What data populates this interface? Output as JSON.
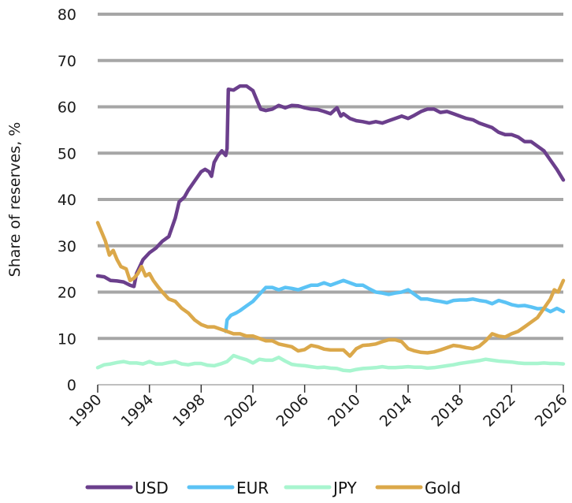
{
  "chart_data": {
    "type": "line",
    "title": "",
    "xlabel": "",
    "ylabel": "Share of reserves, %",
    "xlim": [
      1990,
      2026
    ],
    "ylim": [
      0,
      80
    ],
    "yticks": [
      0,
      10,
      20,
      30,
      40,
      50,
      60,
      70,
      80
    ],
    "ytick_labels": [
      "0",
      "10",
      "20",
      "30",
      "40",
      "50",
      "60",
      "70",
      "80"
    ],
    "xticks": [
      1990,
      1994,
      1998,
      2002,
      2006,
      2010,
      2014,
      2018,
      2022,
      2026
    ],
    "xtick_labels": [
      "1990",
      "1994",
      "1998",
      "2002",
      "2006",
      "2010",
      "2014",
      "2018",
      "2022",
      "2026"
    ],
    "grid": "horizontal",
    "legend": "bottom",
    "series": [
      {
        "name": "USD",
        "color": "#6b3f8c",
        "x": [
          1990,
          1990.5,
          1991,
          1991.5,
          1992,
          1992.5,
          1992.8,
          1993,
          1993.5,
          1994,
          1994.5,
          1995,
          1995.5,
          1996,
          1996.3,
          1996.7,
          1997,
          1997.5,
          1998,
          1998.3,
          1998.6,
          1998.8,
          1999,
          1999.3,
          1999.6,
          1999.9,
          2000,
          2000.1,
          2000.5,
          2001,
          2001.5,
          2002,
          2002.3,
          2002.6,
          2003,
          2003.5,
          2004,
          2004.5,
          2005,
          2005.5,
          2006,
          2006.5,
          2007,
          2007.5,
          2008,
          2008.5,
          2008.8,
          2009,
          2009.5,
          2010,
          2010.5,
          2011,
          2011.5,
          2012,
          2012.5,
          2013,
          2013.5,
          2014,
          2014.5,
          2015,
          2015.5,
          2016,
          2016.5,
          2017,
          2017.5,
          2018,
          2018.5,
          2019,
          2019.5,
          2020,
          2020.5,
          2021,
          2021.5,
          2022,
          2022.5,
          2023,
          2023.5,
          2024,
          2024.5,
          2025,
          2025.5,
          2026
        ],
        "values": [
          23.5,
          23.3,
          22.5,
          22.4,
          22.2,
          21.5,
          21.2,
          24,
          27,
          28.5,
          29.5,
          31,
          32,
          36,
          39.5,
          40.5,
          42,
          44,
          46,
          46.5,
          46,
          45,
          48,
          49.5,
          50.5,
          49.5,
          51,
          63.8,
          63.6,
          64.5,
          64.5,
          63.5,
          61.5,
          59.5,
          59.2,
          59.5,
          60.3,
          59.8,
          60.3,
          60.2,
          59.8,
          59.5,
          59.4,
          59,
          58.5,
          59.8,
          58,
          58.5,
          57.5,
          57,
          56.8,
          56.5,
          56.8,
          56.5,
          57,
          57.5,
          58,
          57.5,
          58.2,
          59,
          59.5,
          59.5,
          58.8,
          59,
          58.5,
          58,
          57.5,
          57.2,
          56.5,
          56,
          55.5,
          54.5,
          54,
          54,
          53.5,
          52.5,
          52.5,
          51.5,
          50.5,
          48.5,
          46.5,
          44.2
        ]
      },
      {
        "name": "EUR",
        "color": "#5bc3f5",
        "x": [
          1999.9,
          2000,
          2000.3,
          2000.7,
          2001,
          2001.5,
          2002,
          2002.5,
          2003,
          2003.5,
          2004,
          2004.5,
          2005,
          2005.5,
          2006,
          2006.5,
          2007,
          2007.5,
          2008,
          2008.5,
          2009,
          2009.5,
          2010,
          2010.5,
          2011,
          2011.5,
          2012,
          2012.5,
          2013,
          2013.5,
          2014,
          2014.5,
          2015,
          2015.5,
          2016,
          2016.5,
          2017,
          2017.5,
          2018,
          2018.5,
          2019,
          2019.5,
          2020,
          2020.5,
          2021,
          2021.5,
          2022,
          2022.5,
          2023,
          2023.5,
          2024,
          2024.5,
          2025,
          2025.5,
          2026
        ],
        "values": [
          11.5,
          14,
          15,
          15.5,
          16,
          17,
          18,
          19.5,
          21,
          21,
          20.5,
          21,
          20.8,
          20.5,
          21,
          21.5,
          21.5,
          22,
          21.5,
          22,
          22.5,
          22,
          21.5,
          21.5,
          20.7,
          20,
          19.8,
          19.5,
          19.8,
          20,
          20.5,
          19.5,
          18.5,
          18.5,
          18.2,
          18,
          17.7,
          18.2,
          18.3,
          18.3,
          18.5,
          18.2,
          18,
          17.5,
          18.2,
          17.8,
          17.3,
          17,
          17.1,
          16.8,
          16.4,
          16.5,
          15.8,
          16.5,
          15.8
        ]
      },
      {
        "name": "JPY",
        "color": "#a8f5cf",
        "x": [
          1990,
          1990.5,
          1991,
          1991.5,
          1992,
          1992.5,
          1993,
          1993.5,
          1994,
          1994.5,
          1995,
          1995.5,
          1996,
          1996.5,
          1997,
          1997.5,
          1998,
          1998.5,
          1999,
          1999.5,
          2000,
          2000.5,
          2001,
          2001.5,
          2002,
          2002.5,
          2003,
          2003.5,
          2004,
          2004.5,
          2005,
          2005.5,
          2006,
          2006.5,
          2007,
          2007.5,
          2008,
          2008.5,
          2009,
          2009.5,
          2010,
          2010.5,
          2011,
          2011.5,
          2012,
          2012.5,
          2013,
          2013.5,
          2014,
          2014.5,
          2015,
          2015.5,
          2016,
          2016.5,
          2017,
          2017.5,
          2018,
          2018.5,
          2019,
          2019.5,
          2020,
          2020.5,
          2021,
          2021.5,
          2022,
          2022.5,
          2023,
          2023.5,
          2024,
          2024.5,
          2025,
          2025.5,
          2026
        ],
        "values": [
          3.7,
          4.3,
          4.5,
          4.8,
          5,
          4.7,
          4.7,
          4.5,
          5,
          4.5,
          4.5,
          4.8,
          5,
          4.5,
          4.3,
          4.6,
          4.6,
          4.2,
          4.1,
          4.5,
          5,
          6.3,
          5.8,
          5.4,
          4.7,
          5.5,
          5.3,
          5.3,
          5.9,
          5.1,
          4.4,
          4.2,
          4.1,
          3.9,
          3.7,
          3.8,
          3.6,
          3.5,
          3.1,
          3.0,
          3.3,
          3.5,
          3.6,
          3.7,
          3.9,
          3.7,
          3.7,
          3.8,
          3.9,
          3.8,
          3.8,
          3.6,
          3.7,
          3.9,
          4.1,
          4.3,
          4.6,
          4.8,
          5,
          5.2,
          5.5,
          5.3,
          5.1,
          5,
          4.9,
          4.7,
          4.6,
          4.6,
          4.6,
          4.7,
          4.6,
          4.6,
          4.5
        ]
      },
      {
        "name": "Gold",
        "color": "#dba84a",
        "x": [
          1990,
          1990.3,
          1990.6,
          1990.9,
          1991.2,
          1991.5,
          1991.8,
          1992.2,
          1992.5,
          1992.8,
          1993.1,
          1993.4,
          1993.7,
          1994,
          1994.3,
          1994.7,
          1995,
          1995.5,
          1996,
          1996.5,
          1997,
          1997.5,
          1998,
          1998.5,
          1999,
          1999.5,
          2000,
          2000.5,
          2001,
          2001.5,
          2002,
          2002.5,
          2003,
          2003.5,
          2004,
          2004.5,
          2005,
          2005.5,
          2006,
          2006.5,
          2007,
          2007.5,
          2008,
          2008.5,
          2009,
          2009.5,
          2010,
          2010.5,
          2011,
          2011.5,
          2012,
          2012.5,
          2013,
          2013.5,
          2014,
          2014.5,
          2015,
          2015.5,
          2016,
          2016.5,
          2017,
          2017.5,
          2018,
          2018.5,
          2019,
          2019.5,
          2020,
          2020.5,
          2021,
          2021.5,
          2022,
          2022.5,
          2023,
          2023.5,
          2024,
          2024.5,
          2025,
          2025.3,
          2025.6,
          2026
        ],
        "values": [
          35,
          33,
          31,
          28,
          29,
          27,
          25.5,
          25,
          22.5,
          23,
          24,
          25.5,
          23.5,
          24,
          22.5,
          21,
          20,
          18.5,
          18,
          16.5,
          15.5,
          14,
          13,
          12.5,
          12.5,
          12,
          11.5,
          11,
          11,
          10.5,
          10.5,
          10,
          9.5,
          9.5,
          8.8,
          8.5,
          8.2,
          7.3,
          7.6,
          8.5,
          8.2,
          7.7,
          7.5,
          7.5,
          7.5,
          6.2,
          7.8,
          8.5,
          8.6,
          8.8,
          9.3,
          9.7,
          9.7,
          9.3,
          7.8,
          7.3,
          7.0,
          6.9,
          7.1,
          7.5,
          8.0,
          8.5,
          8.3,
          8.0,
          7.8,
          8.3,
          9.5,
          11.0,
          10.5,
          10.3,
          11,
          11.5,
          12.5,
          13.5,
          14.5,
          16.5,
          18.5,
          20.5,
          20,
          22.5
        ]
      }
    ]
  }
}
